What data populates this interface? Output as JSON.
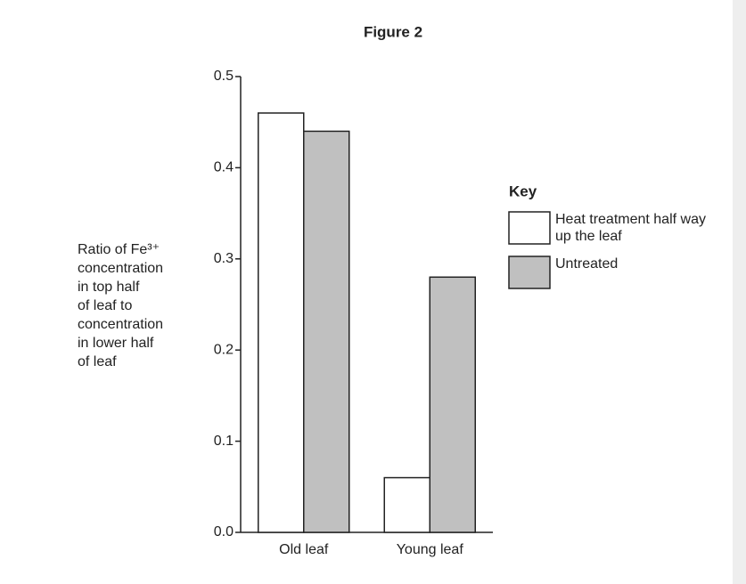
{
  "chart_data": {
    "type": "bar",
    "title": "Figure 2",
    "y_label_lines": [
      "Ratio of Fe³⁺",
      "concentration",
      "in top half",
      "of leaf to",
      "concentration",
      "in lower half",
      "of leaf"
    ],
    "categories": [
      "Old leaf",
      "Young leaf"
    ],
    "series": [
      {
        "name": "Heat treatment half way up the leaf",
        "color": "#ffffff",
        "values": [
          0.46,
          0.06
        ]
      },
      {
        "name": "Untreated",
        "color": "#c0c0c0",
        "values": [
          0.44,
          0.28
        ]
      }
    ],
    "legend_title": "Key",
    "ylim": [
      0,
      0.5
    ],
    "yticks": [
      {
        "value": 0,
        "label": "0.0"
      },
      0.1,
      0.2,
      0.3,
      0.4,
      0.5
    ]
  }
}
